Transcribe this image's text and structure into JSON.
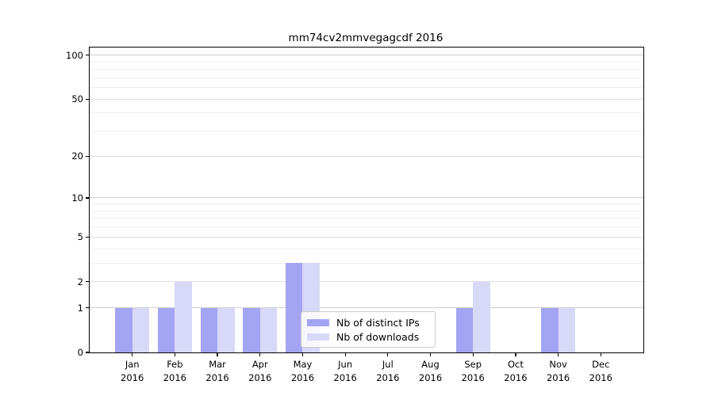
{
  "figure": {
    "background": "#ffffff"
  },
  "chart_data": {
    "type": "bar",
    "title": "mm74cv2mmvegagcdf 2016",
    "categories": [
      "Jan",
      "Feb",
      "Mar",
      "Apr",
      "May",
      "Jun",
      "Jul",
      "Aug",
      "Sep",
      "Oct",
      "Nov",
      "Dec"
    ],
    "category_year": "2016",
    "series": [
      {
        "name": "Nb of distinct IPs",
        "color": "#a4a4f4",
        "values": [
          1,
          1,
          1,
          1,
          3,
          0,
          0,
          0,
          1,
          0,
          1,
          0
        ]
      },
      {
        "name": "Nb of downloads",
        "color": "#d8d8f8",
        "values": [
          1,
          2,
          1,
          1,
          3,
          0,
          0,
          0,
          2,
          0,
          1,
          0
        ]
      }
    ],
    "y_axis": {
      "scale": "log10(1+v)",
      "ticks": [
        0,
        1,
        2,
        5,
        10,
        20,
        50,
        100
      ],
      "major_gridlines": [
        1,
        10,
        100
      ],
      "minor_gridlines": [
        3,
        4,
        6,
        7,
        8,
        9,
        30,
        40,
        60,
        70,
        80,
        90
      ],
      "ylim": [
        0,
        110
      ]
    },
    "x_axis": {
      "label_format": "month over year"
    },
    "legend": {
      "position": "lower center-right inside plot",
      "entries": [
        "Nb of distinct IPs",
        "Nb of downloads"
      ]
    },
    "grid": true
  }
}
